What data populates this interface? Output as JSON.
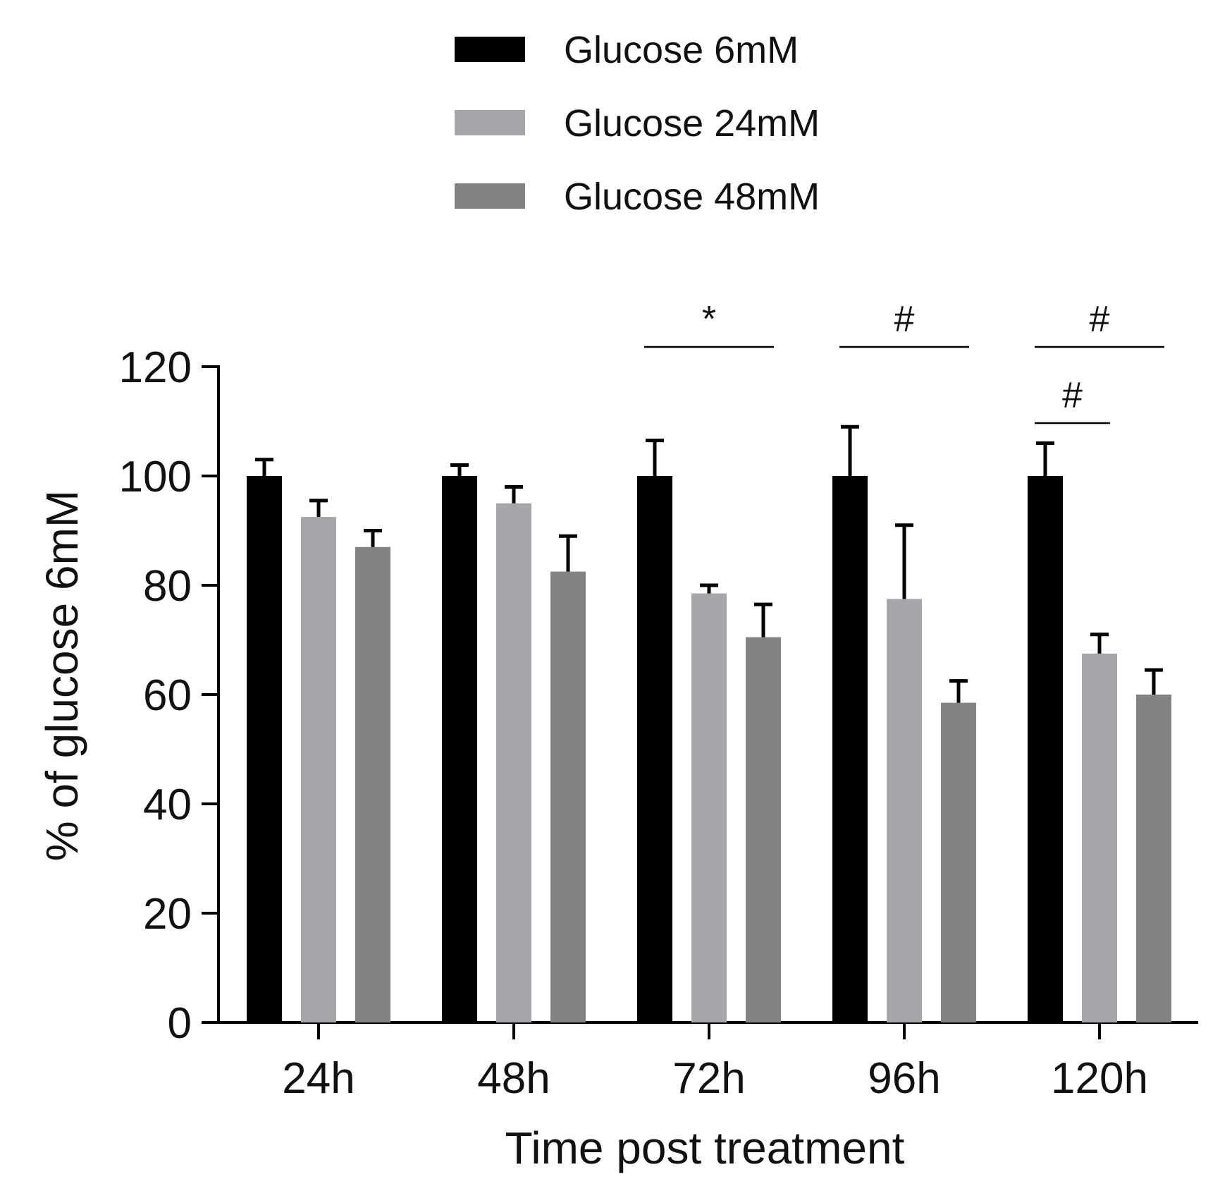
{
  "chart_data": {
    "type": "bar",
    "title": "",
    "xlabel": "Time post treatment",
    "ylabel": "% of glucose 6mM",
    "ylim": [
      0,
      120
    ],
    "yticks": [
      0,
      20,
      40,
      60,
      80,
      100,
      120
    ],
    "ytick_labels": [
      "0",
      "20",
      "40",
      "60",
      "80",
      "100",
      "120"
    ],
    "categories": [
      "24h",
      "48h",
      "72h",
      "96h",
      "120h"
    ],
    "legend_position": "top-center",
    "series": [
      {
        "name": "Glucose 6mM",
        "color": "#000000",
        "values": [
          100,
          100,
          100,
          100,
          100
        ],
        "errors": [
          3,
          2,
          6.5,
          9,
          6
        ]
      },
      {
        "name": "Glucose 24mM",
        "color": "#a6a6aa",
        "values": [
          92.5,
          95,
          78.5,
          77.5,
          67.5
        ],
        "errors": [
          3,
          3,
          1.5,
          13.5,
          3.5
        ]
      },
      {
        "name": "Glucose 48mM",
        "color": "#828282",
        "values": [
          87,
          82.5,
          70.5,
          58.5,
          60
        ],
        "errors": [
          3,
          6.5,
          6,
          4,
          4.5
        ]
      }
    ],
    "annotations": [
      {
        "label": "*",
        "category": "72h",
        "from_series": 0,
        "to_series": 2,
        "level": 1
      },
      {
        "label": "#",
        "category": "96h",
        "from_series": 0,
        "to_series": 2,
        "level": 1
      },
      {
        "label": "#",
        "category": "120h",
        "from_series": 0,
        "to_series": 2,
        "level": 1
      },
      {
        "label": "#",
        "category": "120h",
        "from_series": 0,
        "to_series": 1,
        "level": 0
      }
    ]
  }
}
